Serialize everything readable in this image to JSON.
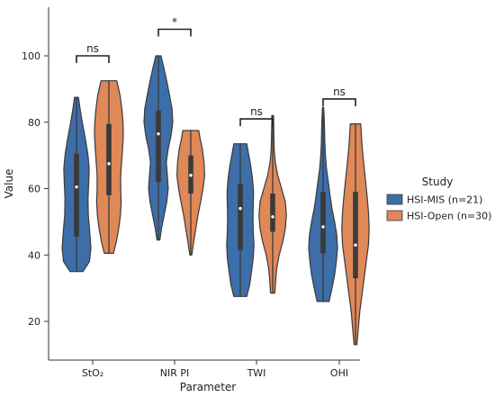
{
  "chart_data": {
    "type": "violin",
    "xlabel": "Parameter",
    "ylabel": "Value",
    "ylim": [
      8,
      115
    ],
    "yticks": [
      20,
      40,
      60,
      80,
      100
    ],
    "categories": [
      "StO₂",
      "NIR PI",
      "TWI",
      "OHI"
    ],
    "legend": {
      "title": "Study",
      "position": "right",
      "entries": [
        "HSI-MIS (n=21)",
        "HSI-Open (n=30)"
      ]
    },
    "colors": {
      "HSI-MIS (n=21)": "#3d6ea8",
      "HSI-Open (n=30)": "#df8858",
      "outline": "#3a3a3a"
    },
    "series": [
      {
        "name": "HSI-MIS (n=21)",
        "violins": [
          {
            "min": 35,
            "max": 87.5,
            "q1": 45.5,
            "median": 60.5,
            "q3": 70.5,
            "profile": [
              [
                35,
                0.45
              ],
              [
                38,
                0.9
              ],
              [
                42,
                1.0
              ],
              [
                47,
                0.92
              ],
              [
                52,
                0.82
              ],
              [
                57,
                0.8
              ],
              [
                62,
                0.85
              ],
              [
                66,
                0.88
              ],
              [
                70,
                0.8
              ],
              [
                75,
                0.62
              ],
              [
                80,
                0.4
              ],
              [
                84,
                0.25
              ],
              [
                87.5,
                0.14
              ]
            ]
          },
          {
            "min": 44.5,
            "max": 100,
            "q1": 62,
            "median": 76.5,
            "q3": 83.5,
            "profile": [
              [
                44.5,
                0.1
              ],
              [
                48,
                0.22
              ],
              [
                52,
                0.4
              ],
              [
                56,
                0.58
              ],
              [
                60,
                0.68
              ],
              [
                64,
                0.62
              ],
              [
                68,
                0.55
              ],
              [
                72,
                0.68
              ],
              [
                76,
                0.88
              ],
              [
                80,
                1.0
              ],
              [
                84,
                0.95
              ],
              [
                88,
                0.78
              ],
              [
                92,
                0.6
              ],
              [
                96,
                0.4
              ],
              [
                100,
                0.18
              ]
            ]
          },
          {
            "min": 27.5,
            "max": 73.5,
            "q1": 41.5,
            "median": 54,
            "q3": 61.5,
            "profile": [
              [
                27.5,
                0.45
              ],
              [
                31,
                0.65
              ],
              [
                35,
                0.78
              ],
              [
                39,
                0.9
              ],
              [
                43,
                0.95
              ],
              [
                47,
                0.9
              ],
              [
                51,
                0.88
              ],
              [
                55,
                0.9
              ],
              [
                59,
                0.92
              ],
              [
                63,
                0.85
              ],
              [
                67,
                0.72
              ],
              [
                71,
                0.55
              ],
              [
                73.5,
                0.45
              ]
            ]
          },
          {
            "min": 26,
            "max": 84.5,
            "q1": 40.5,
            "median": 48.5,
            "q3": 59,
            "profile": [
              [
                26,
                0.42
              ],
              [
                30,
                0.62
              ],
              [
                34,
                0.8
              ],
              [
                38,
                0.92
              ],
              [
                42,
                1.0
              ],
              [
                46,
                0.95
              ],
              [
                50,
                0.8
              ],
              [
                54,
                0.62
              ],
              [
                58,
                0.48
              ],
              [
                62,
                0.36
              ],
              [
                66,
                0.24
              ],
              [
                70,
                0.16
              ],
              [
                74,
                0.12
              ],
              [
                78,
                0.1
              ],
              [
                82,
                0.07
              ],
              [
                84.5,
                0.04
              ]
            ]
          }
        ]
      },
      {
        "name": "HSI-Open (n=30)",
        "violins": [
          {
            "min": 40.5,
            "max": 92.5,
            "q1": 58,
            "median": 67.5,
            "q3": 79.5,
            "profile": [
              [
                40.5,
                0.32
              ],
              [
                44,
                0.52
              ],
              [
                48,
                0.68
              ],
              [
                52,
                0.8
              ],
              [
                56,
                0.85
              ],
              [
                60,
                0.82
              ],
              [
                64,
                0.82
              ],
              [
                68,
                0.88
              ],
              [
                72,
                0.95
              ],
              [
                76,
                1.0
              ],
              [
                80,
                0.98
              ],
              [
                84,
                0.9
              ],
              [
                88,
                0.78
              ],
              [
                92.5,
                0.55
              ]
            ]
          },
          {
            "min": 40,
            "max": 77.5,
            "q1": 58.5,
            "median": 64,
            "q3": 70,
            "profile": [
              [
                40,
                0.07
              ],
              [
                44,
                0.2
              ],
              [
                48,
                0.35
              ],
              [
                52,
                0.5
              ],
              [
                56,
                0.68
              ],
              [
                60,
                0.85
              ],
              [
                64,
                0.96
              ],
              [
                68,
                0.92
              ],
              [
                72,
                0.8
              ],
              [
                75,
                0.65
              ],
              [
                77.5,
                0.55
              ]
            ]
          },
          {
            "min": 28.5,
            "max": 82,
            "q1": 47,
            "median": 51.5,
            "q3": 58.5,
            "profile": [
              [
                28.5,
                0.15
              ],
              [
                32,
                0.2
              ],
              [
                36,
                0.28
              ],
              [
                40,
                0.45
              ],
              [
                44,
                0.7
              ],
              [
                48,
                0.88
              ],
              [
                52,
                0.95
              ],
              [
                56,
                0.88
              ],
              [
                60,
                0.62
              ],
              [
                64,
                0.35
              ],
              [
                68,
                0.18
              ],
              [
                72,
                0.1
              ],
              [
                76,
                0.08
              ],
              [
                80,
                0.06
              ],
              [
                82,
                0.06
              ]
            ]
          },
          {
            "min": 13,
            "max": 79.5,
            "q1": 33,
            "median": 43,
            "q3": 59,
            "profile": [
              [
                13,
                0.1
              ],
              [
                18,
                0.2
              ],
              [
                23,
                0.3
              ],
              [
                28,
                0.45
              ],
              [
                33,
                0.6
              ],
              [
                38,
                0.75
              ],
              [
                43,
                0.9
              ],
              [
                48,
                0.95
              ],
              [
                53,
                0.9
              ],
              [
                58,
                0.8
              ],
              [
                63,
                0.68
              ],
              [
                68,
                0.56
              ],
              [
                73,
                0.45
              ],
              [
                79.5,
                0.36
              ]
            ]
          }
        ]
      }
    ],
    "annotations": [
      {
        "category": "StO₂",
        "text": "ns",
        "y": 100
      },
      {
        "category": "NIR PI",
        "text": "*",
        "y": 108
      },
      {
        "category": "TWI",
        "text": "ns",
        "y": 81
      },
      {
        "category": "OHI",
        "text": "ns",
        "y": 87
      }
    ]
  }
}
